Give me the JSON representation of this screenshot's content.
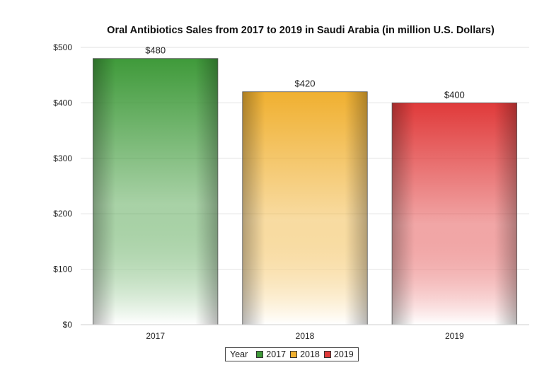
{
  "chart_data": {
    "type": "bar",
    "title": "Oral Antibiotics Sales from 2017 to 2019 in Saudi Arabia (in million U.S. Dollars)",
    "xlabel": "",
    "ylabel": "",
    "categories": [
      "2017",
      "2018",
      "2019"
    ],
    "values": [
      480,
      420,
      400
    ],
    "value_labels": [
      "$480",
      "$420",
      "$400"
    ],
    "ylim": [
      0,
      500
    ],
    "yticks": [
      0,
      100,
      200,
      300,
      400,
      500
    ],
    "ytick_labels": [
      "$0",
      "$100",
      "$200",
      "$300",
      "$400",
      "$500"
    ],
    "grid": true,
    "legend": {
      "title": "Year",
      "placement": "bottom",
      "entries": [
        "2017",
        "2018",
        "2019"
      ]
    },
    "colors": [
      "#3f9a3a",
      "#f0b030",
      "#e03a3a"
    ],
    "edge_colors": [
      "#1f5e1f",
      "#b37a12",
      "#a81a1a"
    ]
  }
}
